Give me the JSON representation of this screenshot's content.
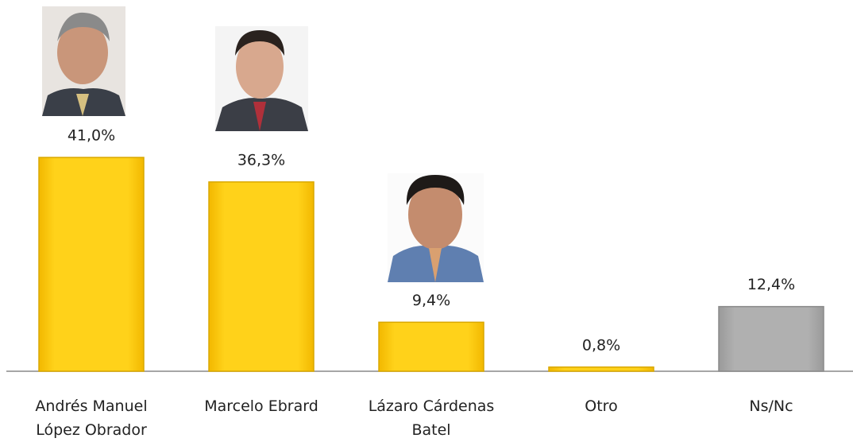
{
  "chart_data": {
    "type": "bar",
    "categories": [
      "Andrés Manuel López Obrador",
      "Marcelo Ebrard",
      "Lázaro Cárdenas Batel",
      "Otro",
      "Ns/Nc"
    ],
    "values": [
      41.0,
      36.3,
      9.4,
      0.8,
      12.4
    ],
    "value_labels": [
      "41,0%",
      "36,3%",
      "9,4%",
      "0,8%",
      "12,4%"
    ],
    "colors": [
      "#ffcc00",
      "#ffcc00",
      "#ffcc00",
      "#ffcc00",
      "#a6a6a6"
    ]
  }
}
